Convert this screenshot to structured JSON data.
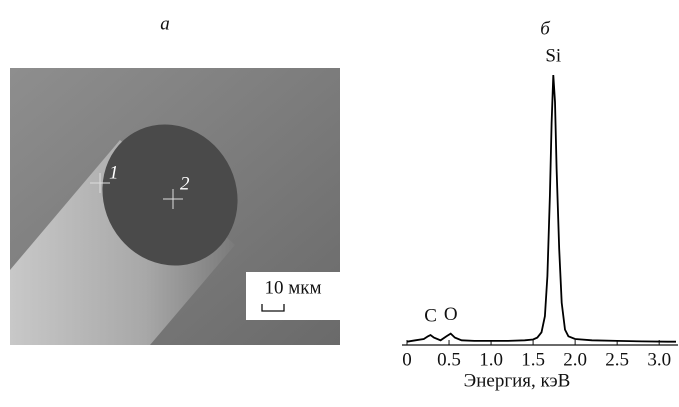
{
  "image": {
    "panel_label": "а",
    "markers": [
      "1",
      "2"
    ],
    "scale_bar": "10 мкм"
  },
  "chart_data": {
    "type": "line",
    "panel_label": "б",
    "x_label": "Энергия, кэВ",
    "x": [
      0,
      0.1,
      0.2,
      0.25,
      0.28,
      0.32,
      0.4,
      0.47,
      0.52,
      0.57,
      0.65,
      0.8,
      1.0,
      1.2,
      1.4,
      1.5,
      1.55,
      1.6,
      1.64,
      1.67,
      1.7,
      1.72,
      1.74,
      1.76,
      1.78,
      1.81,
      1.84,
      1.88,
      1.92,
      2.0,
      2.2,
      2.5,
      2.8,
      3.1,
      3.2
    ],
    "values": [
      0.5,
      1,
      1.5,
      2.5,
      3,
      2,
      1,
      2.5,
      3.5,
      2,
      1,
      0.8,
      0.8,
      0.8,
      1,
      1.3,
      2,
      4,
      10,
      25,
      55,
      82,
      100,
      90,
      65,
      35,
      15,
      5,
      2.5,
      1.5,
      1,
      0.8,
      0.6,
      0.5,
      0.5
    ],
    "color": "#000000",
    "annotations": [
      {
        "text": "C",
        "x": 0.28
      },
      {
        "text": "O",
        "x": 0.52
      },
      {
        "text": "Si",
        "x": 1.74
      }
    ],
    "xlim": [
      0,
      3.2
    ],
    "ylim": [
      0,
      100
    ],
    "xticks": [
      0,
      0.5,
      {
        "value": 1,
        "label": "1.0"
      },
      1.5,
      {
        "value": 2,
        "label": "2.0"
      },
      2.5,
      {
        "value": 3,
        "label": "3.0"
      }
    ]
  }
}
